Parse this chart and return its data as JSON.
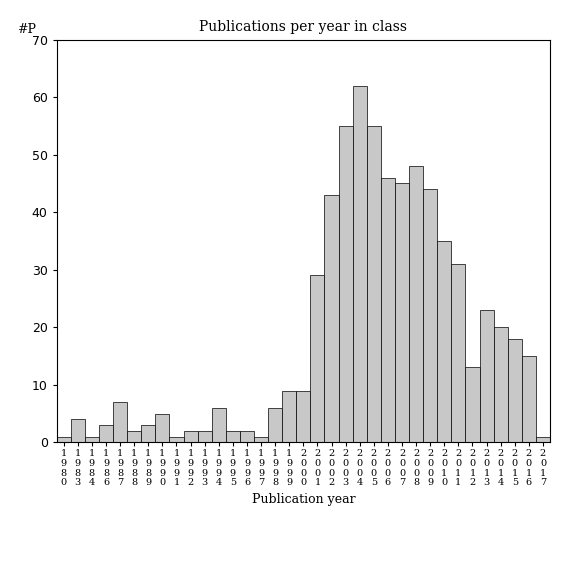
{
  "title": "Publications per year in class",
  "xlabel": "Publication year",
  "ylabel": "#P",
  "ylim": [
    0,
    70
  ],
  "yticks": [
    0,
    10,
    20,
    30,
    40,
    50,
    60,
    70
  ],
  "bar_color": "#c8c8c8",
  "bar_edgecolor": "#000000",
  "years": [
    1980,
    1983,
    1984,
    1986,
    1987,
    1988,
    1989,
    1990,
    1991,
    1992,
    1993,
    1994,
    1995,
    1996,
    1997,
    1998,
    1999,
    2000,
    2001,
    2002,
    2003,
    2004,
    2005,
    2006,
    2007,
    2008,
    2009,
    2010,
    2011,
    2012,
    2013,
    2014,
    2015,
    2016,
    2017
  ],
  "values": [
    1,
    4,
    1,
    3,
    7,
    2,
    3,
    5,
    1,
    2,
    2,
    6,
    2,
    2,
    1,
    6,
    9,
    9,
    29,
    43,
    55,
    62,
    55,
    46,
    45,
    48,
    44,
    35,
    31,
    13,
    23,
    20,
    18,
    15,
    1
  ],
  "figsize": [
    5.67,
    5.67
  ],
  "dpi": 100
}
